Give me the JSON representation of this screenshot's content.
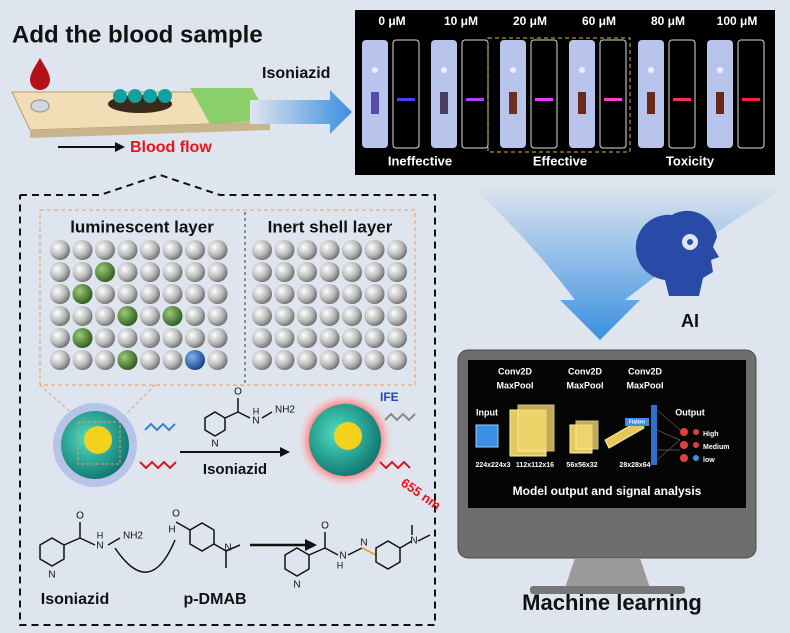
{
  "header": {
    "title": "Add the blood sample",
    "reagent": "Isoniazid",
    "flow": "Blood flow"
  },
  "strips": {
    "concentrations": [
      "0 μM",
      "10 μM",
      "20 μM",
      "60 μM",
      "80 μM",
      "100 μM"
    ],
    "groups": [
      "Ineffective",
      "Effective",
      "Toxicity"
    ]
  },
  "nanoparticle": {
    "layers": [
      "luminescent layer",
      "Inert shell layer"
    ],
    "reagent": "Isoniazid",
    "ife": "IFE",
    "emission": "655 nm",
    "hydrazide_atoms": [
      "N",
      "O",
      "H",
      "N",
      "NH2"
    ]
  },
  "reaction": {
    "reactant": "Isoniazid",
    "reagent": "p-DMAB",
    "reactant_atoms": [
      "N",
      "O",
      "H",
      "N",
      "NH2"
    ],
    "reagent_atoms": [
      "H",
      "O",
      "N"
    ],
    "product_atoms": [
      "N",
      "O",
      "H",
      "N",
      "N",
      "N"
    ]
  },
  "ai": "AI",
  "model": {
    "stages": [
      {
        "conv": "Conv2D",
        "pool": "MaxPool",
        "size": "112x112x16"
      },
      {
        "conv": "Conv2D",
        "pool": "MaxPool",
        "size": "56x56x32"
      },
      {
        "conv": "Conv2D",
        "pool": "MaxPool",
        "size": "28x28x64"
      }
    ],
    "input": "Input",
    "input_size": "224x224x3",
    "flatten": "Flatten",
    "output": "Output",
    "classes": [
      "High",
      "Medium",
      "low"
    ],
    "caption": "Model output and signal analysis"
  },
  "footer": "Machine learning"
}
